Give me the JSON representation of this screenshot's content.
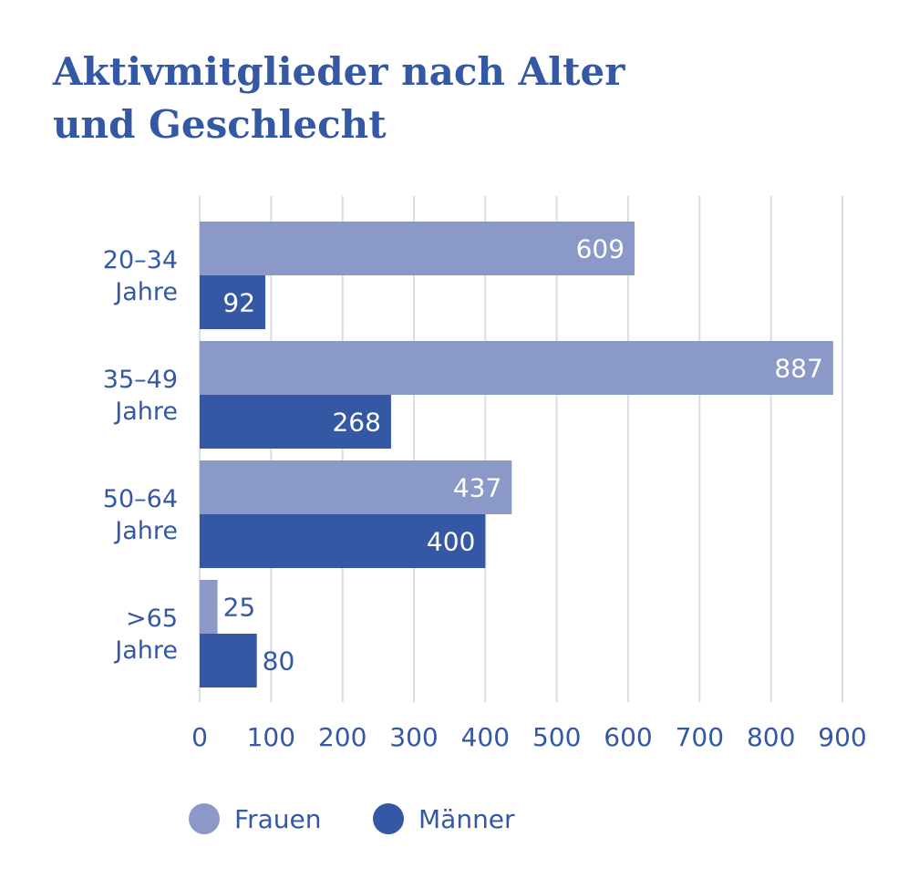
{
  "chart_data": {
    "type": "bar",
    "orientation": "horizontal",
    "title": [
      "Aktivmitglieder nach Alter",
      "und Geschlecht"
    ],
    "categories": [
      [
        "20–34",
        "Jahre"
      ],
      [
        "35–49",
        "Jahre"
      ],
      [
        "50–64",
        "Jahre"
      ],
      [
        ">65",
        "Jahre"
      ]
    ],
    "series": [
      {
        "name": "Frauen",
        "color": "#8b99c9",
        "values": [
          609,
          887,
          437,
          25
        ]
      },
      {
        "name": "Männer",
        "color": "#3558a4",
        "values": [
          92,
          268,
          400,
          80
        ]
      }
    ],
    "xlim": [
      0,
      900
    ],
    "xticks": [
      0,
      100,
      200,
      300,
      400,
      500,
      600,
      700,
      800,
      900
    ],
    "grid": true,
    "legend": "bottom"
  }
}
